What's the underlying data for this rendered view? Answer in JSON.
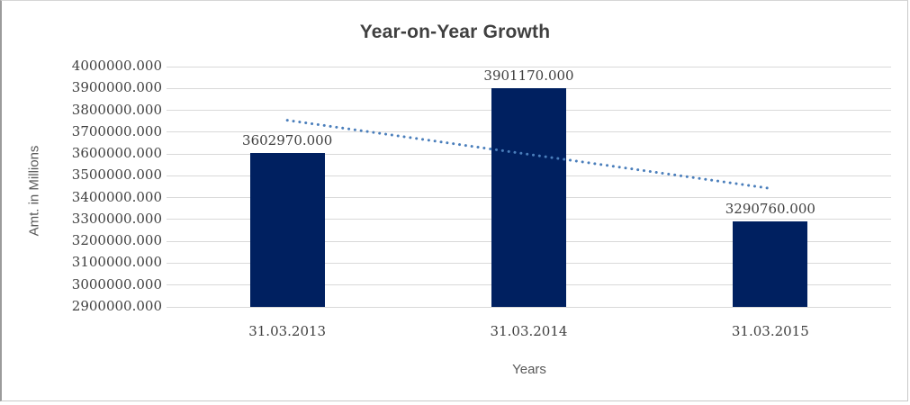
{
  "chart_data": {
    "type": "bar",
    "title": "Year-on-Year Growth",
    "xlabel": "Years",
    "ylabel": "Amt. in Millions",
    "categories": [
      "31.03.2013",
      "31.03.2014",
      "31.03.2015"
    ],
    "values": [
      3602970.0,
      3901170.0,
      3290760.0
    ],
    "data_labels": [
      "3602970.000",
      "3901170.000",
      "3290760.000"
    ],
    "ylim": [
      2900000,
      4000000
    ],
    "ytick_step": 100000,
    "ytick_labels": [
      "2900000.000",
      "3000000.000",
      "3100000.000",
      "3200000.000",
      "3300000.000",
      "3400000.000",
      "3500000.000",
      "3600000.000",
      "3700000.000",
      "3800000.000",
      "3900000.000",
      "4000000.000"
    ],
    "grid": true,
    "legend": "none",
    "trendline": {
      "kind": "linear",
      "style": "dotted",
      "endpoint_values": [
        3754405,
        3442195
      ]
    },
    "colors": {
      "bar": "#002060",
      "trendline": "#4a7ebb",
      "gridline": "#d9d9d9",
      "title_text": "#404040",
      "axis_text": "#404040",
      "axis_title_text": "#595959"
    }
  }
}
